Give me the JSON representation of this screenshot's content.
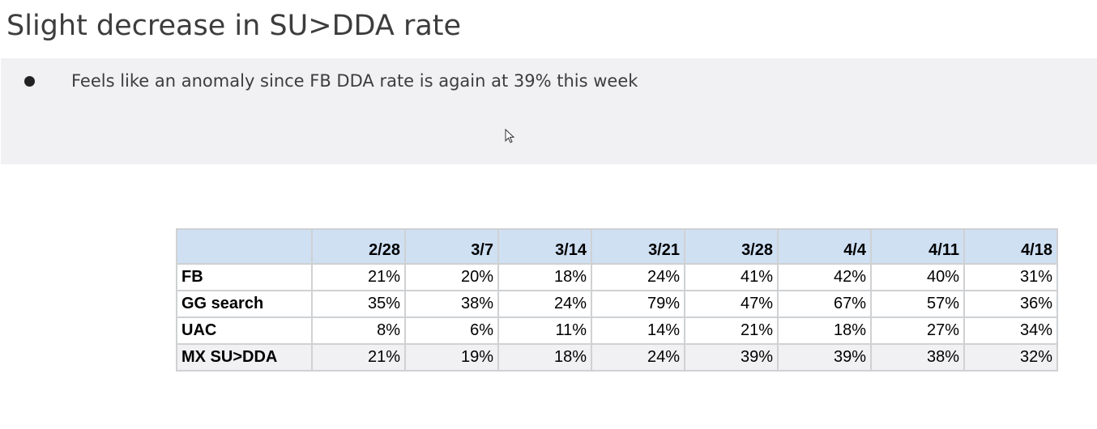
{
  "title": "Slight decrease in SU>DDA rate",
  "bullets": [
    "Feels like an anomaly since FB DDA rate is again at 39% this week"
  ],
  "table": {
    "header": [
      "",
      "2/28",
      "3/7",
      "3/14",
      "3/21",
      "3/28",
      "4/4",
      "4/11",
      "4/18"
    ],
    "rows": [
      {
        "label": "FB",
        "values": [
          "21%",
          "20%",
          "18%",
          "24%",
          "41%",
          "42%",
          "40%",
          "31%"
        ]
      },
      {
        "label": "GG search",
        "values": [
          "35%",
          "38%",
          "24%",
          "79%",
          "47%",
          "67%",
          "57%",
          "36%"
        ]
      },
      {
        "label": "UAC",
        "values": [
          "8%",
          "6%",
          "11%",
          "14%",
          "21%",
          "18%",
          "27%",
          "34%"
        ]
      },
      {
        "label": "MX SU>DDA",
        "values": [
          "21%",
          "19%",
          "18%",
          "24%",
          "39%",
          "39%",
          "38%",
          "32%"
        ]
      }
    ]
  },
  "icons": {
    "cursor": "mouse-pointer-icon"
  }
}
